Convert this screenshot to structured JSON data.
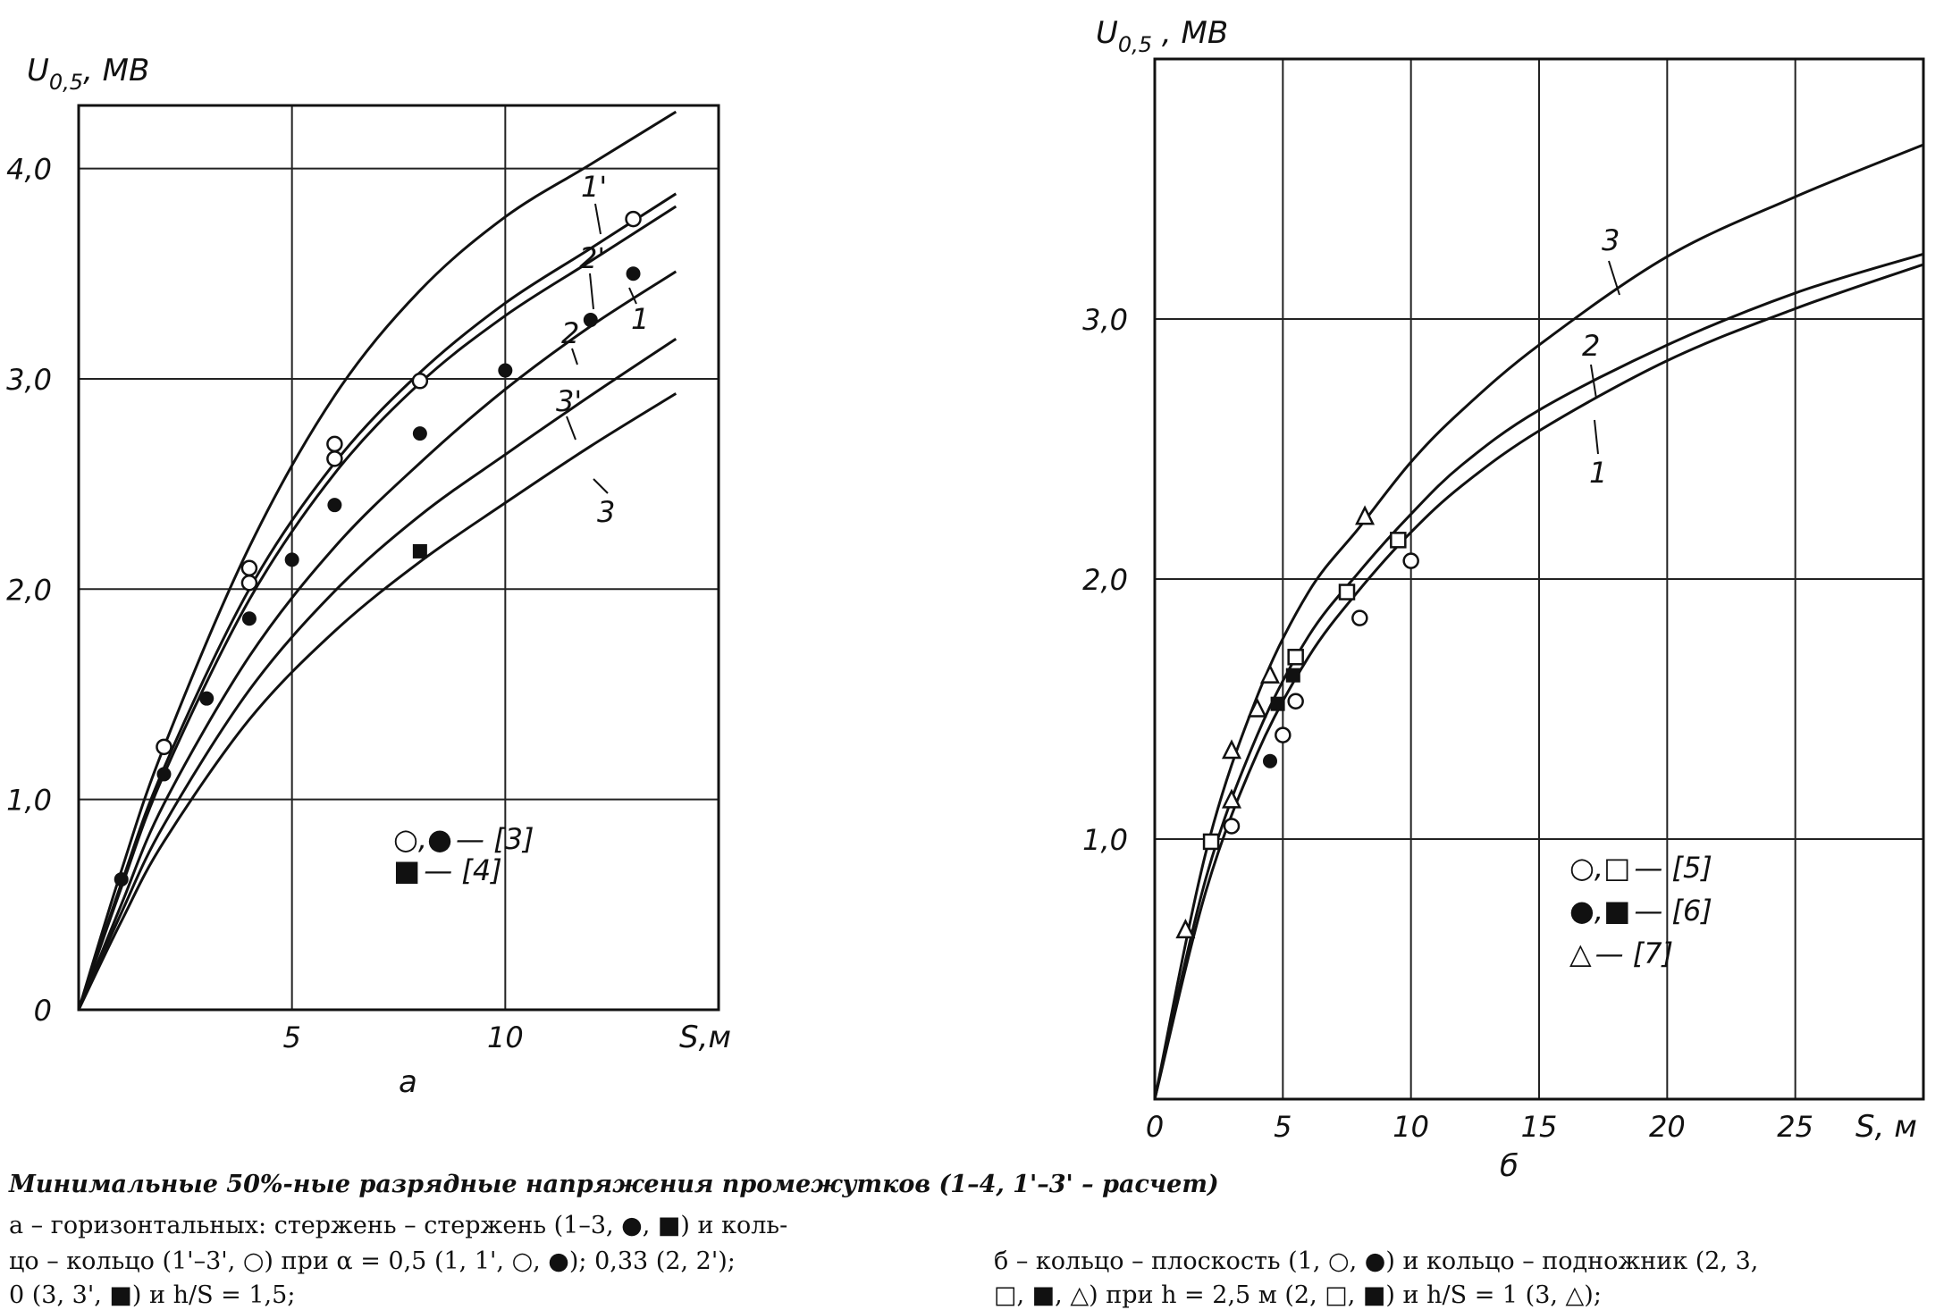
{
  "chart_data": [
    {
      "type": "line",
      "panel_label": "а",
      "ylabel_main": "U",
      "ylabel_sub": "0,5",
      "ylabel_unit": ", МВ",
      "xlabel": "S,м",
      "xlim": [
        0,
        15
      ],
      "ylim": [
        0,
        4.3
      ],
      "x_ticks": [
        "5",
        "10"
      ],
      "y_ticks": [
        "0",
        "1,0",
        "2,0",
        "3,0",
        "4,0"
      ],
      "grid": true,
      "series": [
        {
          "name": "1'",
          "x": [
            0,
            1,
            2,
            4,
            6,
            8,
            10,
            12,
            14
          ],
          "y": [
            0,
            0.66,
            1.25,
            2.2,
            2.92,
            3.42,
            3.77,
            4.02,
            4.27
          ]
        },
        {
          "name": "2'",
          "x": [
            0,
            1,
            2,
            4,
            6,
            8,
            10,
            12,
            14
          ],
          "y": [
            0,
            0.6,
            1.15,
            2.0,
            2.6,
            3.03,
            3.36,
            3.62,
            3.88
          ]
        },
        {
          "name": "1",
          "x": [
            0,
            1,
            2,
            4,
            6,
            8,
            10,
            12,
            14
          ],
          "y": [
            0,
            0.58,
            1.12,
            1.95,
            2.55,
            2.98,
            3.3,
            3.56,
            3.82
          ]
        },
        {
          "name": "2",
          "x": [
            0,
            1,
            2,
            4,
            6,
            8,
            10,
            12,
            14
          ],
          "y": [
            0,
            0.5,
            0.98,
            1.68,
            2.2,
            2.6,
            2.95,
            3.25,
            3.51
          ]
        },
        {
          "name": "3'",
          "x": [
            0,
            1,
            2,
            4,
            6,
            8,
            10,
            12,
            14
          ],
          "y": [
            0,
            0.46,
            0.88,
            1.52,
            1.99,
            2.35,
            2.64,
            2.92,
            3.19
          ]
        },
        {
          "name": "3",
          "x": [
            0,
            1,
            2,
            4,
            6,
            8,
            10,
            12,
            14
          ],
          "y": [
            0,
            0.42,
            0.8,
            1.38,
            1.8,
            2.13,
            2.41,
            2.68,
            2.93
          ]
        }
      ],
      "markers": [
        {
          "shape": "circle-open",
          "points": [
            [
              2,
              1.25
            ],
            [
              4,
              2.1
            ],
            [
              4,
              2.03
            ],
            [
              6,
              2.69
            ],
            [
              6,
              2.62
            ],
            [
              8,
              2.99
            ],
            [
              13,
              3.76
            ]
          ]
        },
        {
          "shape": "circle-filled",
          "points": [
            [
              1,
              0.62
            ],
            [
              2,
              1.12
            ],
            [
              3,
              1.48
            ],
            [
              4,
              1.86
            ],
            [
              5,
              2.14
            ],
            [
              6,
              2.4
            ],
            [
              8,
              2.74
            ],
            [
              10,
              3.04
            ],
            [
              12,
              3.28
            ],
            [
              13,
              3.5
            ]
          ]
        },
        {
          "shape": "square-filled",
          "points": [
            [
              8,
              2.18
            ]
          ]
        }
      ],
      "curve_labels": [
        "1'",
        "2'",
        "1",
        "2",
        "3'",
        "3"
      ],
      "legend": [
        {
          "symbols": "○,●",
          "text": "— [3]"
        },
        {
          "symbols": "■",
          "text": "— [4]"
        }
      ]
    },
    {
      "type": "line",
      "panel_label": "б",
      "ylabel_main": "U",
      "ylabel_sub": "0,5",
      "ylabel_unit": " , МВ",
      "xlabel": "S, м",
      "xlim": [
        0,
        30
      ],
      "ylim": [
        0,
        4.0
      ],
      "x_ticks": [
        "0",
        "5",
        "10",
        "15",
        "20",
        "25"
      ],
      "y_ticks": [
        "1,0",
        "2,0",
        "3,0"
      ],
      "grid": true,
      "series": [
        {
          "name": "3",
          "x": [
            0,
            2,
            4,
            6,
            8,
            10,
            12,
            15,
            20,
            25,
            30
          ],
          "y": [
            0,
            0.95,
            1.55,
            1.95,
            2.2,
            2.45,
            2.65,
            2.9,
            3.24,
            3.47,
            3.67
          ]
        },
        {
          "name": "2",
          "x": [
            0,
            2,
            4,
            6,
            8,
            10,
            12,
            15,
            20,
            25,
            30
          ],
          "y": [
            0,
            0.85,
            1.4,
            1.78,
            2.03,
            2.25,
            2.44,
            2.65,
            2.9,
            3.1,
            3.25
          ]
        },
        {
          "name": "1",
          "x": [
            0,
            2,
            4,
            6,
            8,
            10,
            12,
            15,
            20,
            25,
            30
          ],
          "y": [
            0,
            0.8,
            1.33,
            1.7,
            1.96,
            2.18,
            2.36,
            2.57,
            2.84,
            3.04,
            3.21
          ]
        }
      ],
      "markers": [
        {
          "shape": "circle-open",
          "points": [
            [
              3,
              1.05
            ],
            [
              5,
              1.4
            ],
            [
              5.5,
              1.53
            ],
            [
              8,
              1.85
            ],
            [
              10,
              2.07
            ]
          ]
        },
        {
          "shape": "square-open",
          "points": [
            [
              2.2,
              0.99
            ],
            [
              5.5,
              1.7
            ],
            [
              7.5,
              1.95
            ],
            [
              9.5,
              2.15
            ]
          ]
        },
        {
          "shape": "circle-filled",
          "points": [
            [
              4.5,
              1.3
            ]
          ]
        },
        {
          "shape": "square-filled",
          "points": [
            [
              4.8,
              1.52
            ],
            [
              5.4,
              1.63
            ]
          ]
        },
        {
          "shape": "triangle-open",
          "points": [
            [
              1.2,
              0.65
            ],
            [
              3,
              1.15
            ],
            [
              3,
              1.34
            ],
            [
              4,
              1.5
            ],
            [
              4.5,
              1.63
            ],
            [
              8.2,
              2.24
            ]
          ]
        }
      ],
      "curve_labels": [
        "3",
        "2",
        "1"
      ],
      "legend": [
        {
          "symbols": "○,□",
          "text": "— [5]"
        },
        {
          "symbols": "●,■",
          "text": "— [6]"
        },
        {
          "symbols": "△",
          "text": "— [7]"
        }
      ]
    }
  ],
  "caption": {
    "title": "Минимальные 50%-ные разрядные напряжения промежутков (1–4, 1'–3' – расчет)",
    "a_line1": "а – горизонтальных: стержень – стержень (1–3, ●, ■) и коль-",
    "a_line2": "цо – кольцо (1'–3', ○) при α = 0,5 (1, 1', ○, ●); 0,33 (2, 2');",
    "a_line3": "0 (3, 3', ■) и h/S = 1,5;",
    "b_line1": "б – кольцо – плоскость (1, ○, ●) и кольцо – подножник (2, 3,",
    "b_line2": "□, ■, △) при h = 2,5 м (2, □, ■) и h/S = 1 (3, △);"
  }
}
